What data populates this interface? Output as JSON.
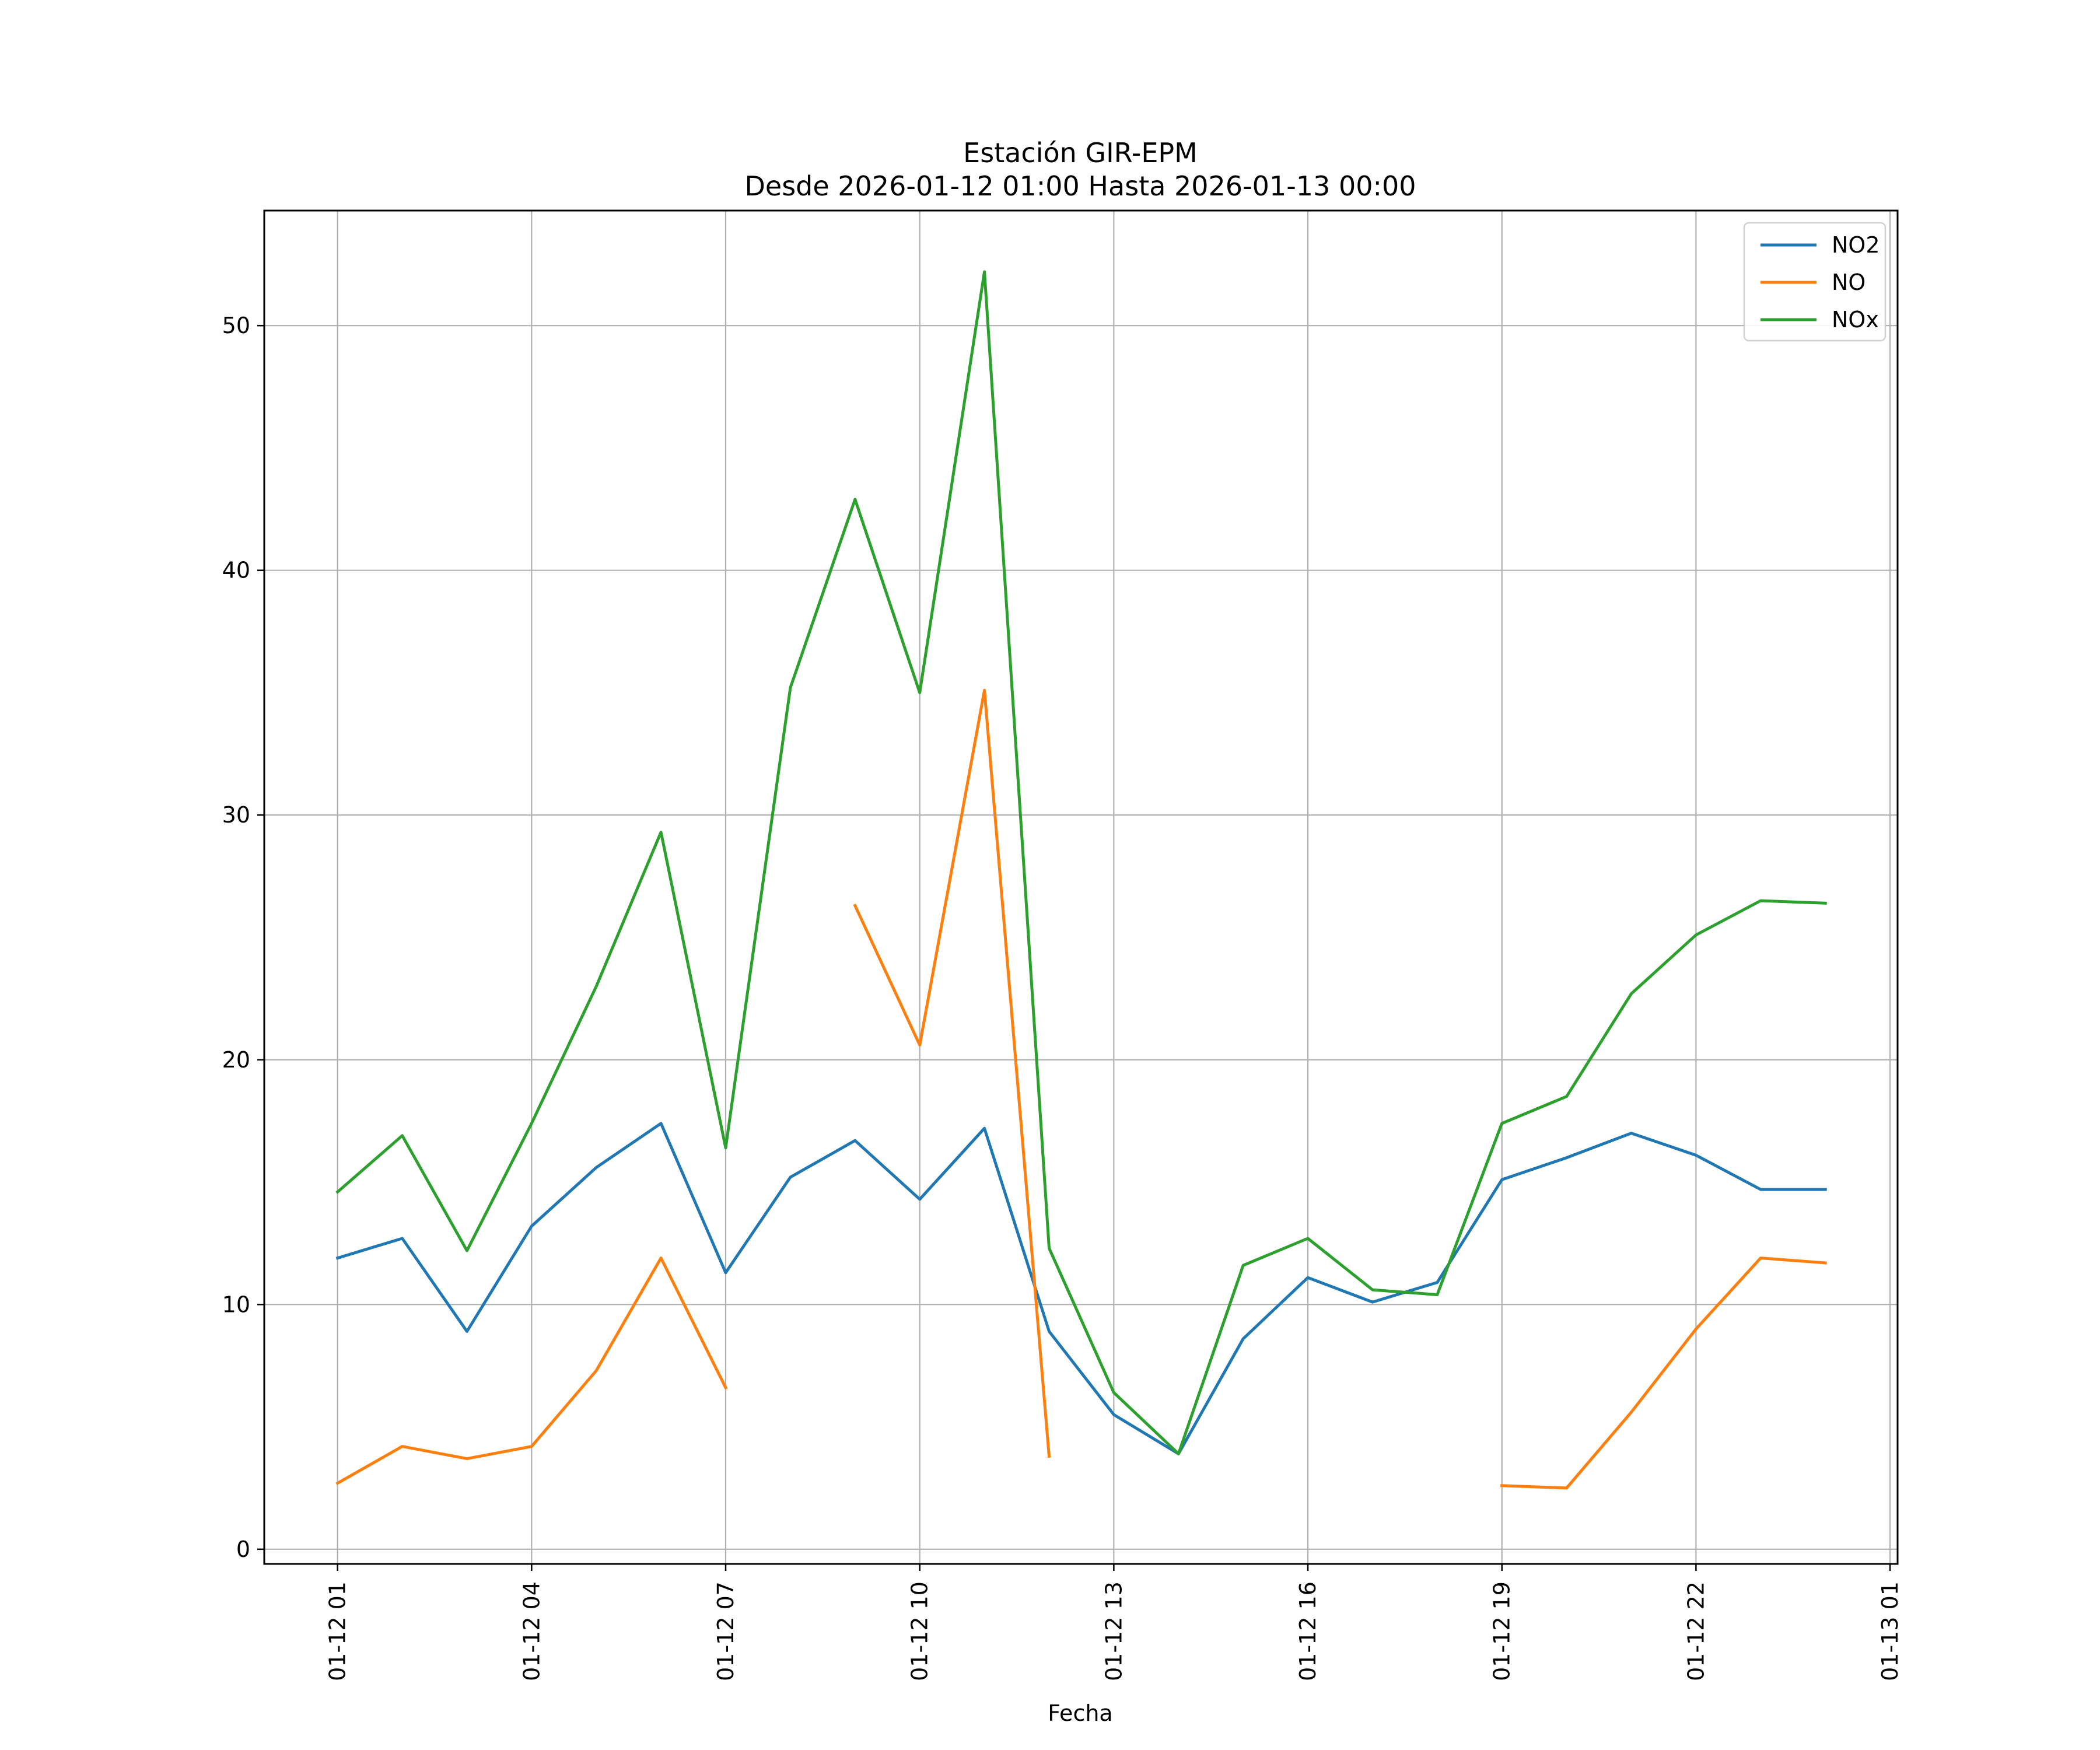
{
  "chart_data": {
    "type": "line",
    "title": "Estación GIR-EPM",
    "subtitle": "Desde 2026-01-12 01:00 Hasta 2026-01-13 00:00",
    "xlabel": "Fecha",
    "ylabel": "",
    "x": [
      "2026-01-12 01:00",
      "2026-01-12 02:00",
      "2026-01-12 03:00",
      "2026-01-12 04:00",
      "2026-01-12 05:00",
      "2026-01-12 06:00",
      "2026-01-12 07:00",
      "2026-01-12 08:00",
      "2026-01-12 09:00",
      "2026-01-12 10:00",
      "2026-01-12 11:00",
      "2026-01-12 12:00",
      "2026-01-12 13:00",
      "2026-01-12 14:00",
      "2026-01-12 15:00",
      "2026-01-12 16:00",
      "2026-01-12 17:00",
      "2026-01-12 18:00",
      "2026-01-12 19:00",
      "2026-01-12 20:00",
      "2026-01-12 21:00",
      "2026-01-12 22:00",
      "2026-01-12 23:00",
      "2026-01-13 00:00"
    ],
    "xlim": [
      "2026-01-11 23:52",
      "2026-01-13 01:07"
    ],
    "xticks": [
      "2026-01-12 01:00",
      "2026-01-12 04:00",
      "2026-01-12 07:00",
      "2026-01-12 10:00",
      "2026-01-12 13:00",
      "2026-01-12 16:00",
      "2026-01-12 19:00",
      "2026-01-12 22:00",
      "2026-01-13 01:00"
    ],
    "xtick_labels": [
      "01-12 01",
      "01-12 04",
      "01-12 07",
      "01-12 10",
      "01-12 13",
      "01-12 16",
      "01-12 19",
      "01-12 22",
      "01-13 01"
    ],
    "ylim": [
      -0.6,
      54.7
    ],
    "yticks": [
      0,
      10,
      20,
      30,
      40,
      50
    ],
    "ytick_labels": [
      "0",
      "10",
      "20",
      "30",
      "40",
      "50"
    ],
    "grid": true,
    "legend_position": "top-right",
    "series": [
      {
        "name": "NO2",
        "color": "#1f77b4",
        "values": [
          11.9,
          12.7,
          8.9,
          13.2,
          15.6,
          17.4,
          11.3,
          15.2,
          16.7,
          14.3,
          17.2,
          8.9,
          5.5,
          3.9,
          8.6,
          11.1,
          10.1,
          10.9,
          15.1,
          16.0,
          17.0,
          16.1,
          14.7,
          14.7
        ]
      },
      {
        "name": "NO",
        "color": "#ff7f0e",
        "values": [
          2.7,
          4.2,
          3.7,
          4.2,
          7.3,
          11.9,
          6.6,
          null,
          26.3,
          20.6,
          35.1,
          3.8,
          null,
          null,
          null,
          null,
          null,
          null,
          2.6,
          2.5,
          5.6,
          9.0,
          11.9,
          11.7
        ]
      },
      {
        "name": "NOx",
        "color": "#2ca02c",
        "values": [
          14.6,
          16.9,
          12.2,
          17.4,
          23.0,
          29.3,
          16.4,
          35.2,
          42.9,
          35.0,
          52.2,
          12.3,
          6.4,
          3.9,
          11.6,
          12.7,
          10.6,
          10.4,
          17.4,
          18.5,
          22.7,
          25.1,
          26.5,
          26.4
        ]
      }
    ]
  }
}
